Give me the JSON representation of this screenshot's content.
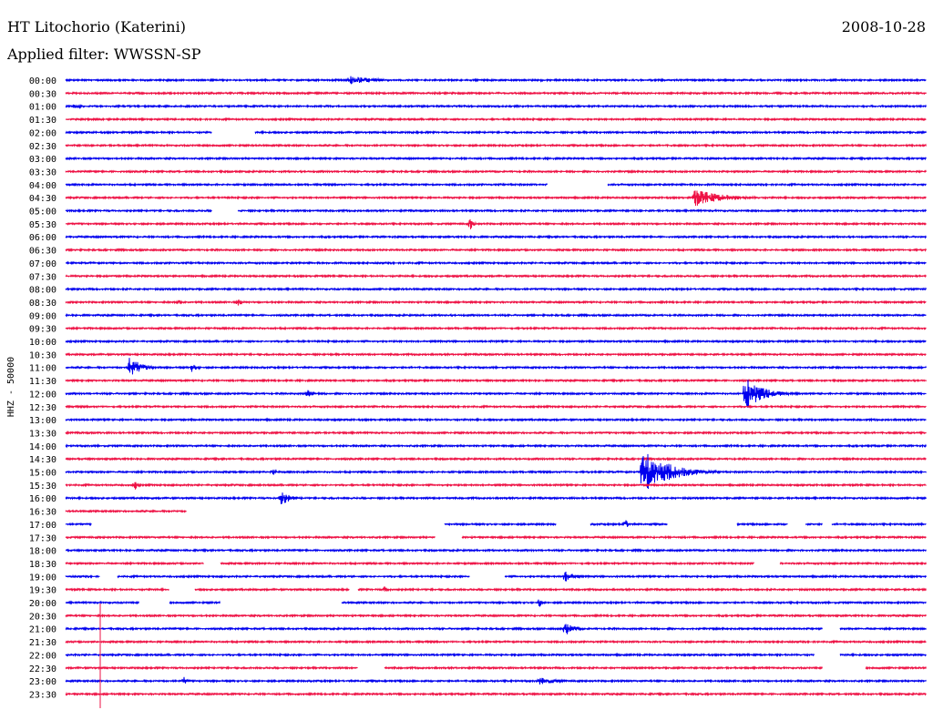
{
  "header": {
    "station": "HT Litochorio (Katerini)",
    "date": "2008-10-28",
    "filter": "Applied filter: WWSSN-SP"
  },
  "chart_data": {
    "type": "line",
    "title": "HT Litochorio (Katerini)",
    "subtitle": "Applied filter: WWSSN-SP",
    "ylabel": "HHZ - 50000",
    "series_colors": [
      "#0000ee",
      "#ee1144"
    ],
    "rows": [
      {
        "label": "00:00",
        "events": [
          [
            0.12,
            0.4,
            5
          ],
          [
            0.33,
            5,
            25
          ],
          [
            0.55,
            2,
            5
          ]
        ],
        "gaps": []
      },
      {
        "label": "00:30",
        "events": [],
        "gaps": []
      },
      {
        "label": "01:00",
        "events": [
          [
            0.01,
            4,
            6
          ]
        ],
        "gaps": []
      },
      {
        "label": "01:30",
        "events": [],
        "gaps": []
      },
      {
        "label": "02:00",
        "events": [],
        "gaps": [
          [
            0.17,
            0.22
          ]
        ]
      },
      {
        "label": "02:30",
        "events": [],
        "gaps": []
      },
      {
        "label": "03:00",
        "events": [],
        "gaps": []
      },
      {
        "label": "03:30",
        "events": [],
        "gaps": []
      },
      {
        "label": "04:00",
        "events": [],
        "gaps": [
          [
            0.56,
            0.63
          ]
        ]
      },
      {
        "label": "04:30",
        "events": [
          [
            0.73,
            10,
            28
          ]
        ],
        "gaps": []
      },
      {
        "label": "05:00",
        "events": [],
        "gaps": [
          [
            0.17,
            0.2
          ]
        ]
      },
      {
        "label": "05:30",
        "events": [
          [
            0.47,
            8,
            3
          ]
        ],
        "gaps": []
      },
      {
        "label": "06:00",
        "events": [],
        "gaps": []
      },
      {
        "label": "06:30",
        "events": [],
        "gaps": []
      },
      {
        "label": "07:00",
        "events": [],
        "gaps": []
      },
      {
        "label": "07:30",
        "events": [],
        "gaps": []
      },
      {
        "label": "08:00",
        "events": [],
        "gaps": []
      },
      {
        "label": "08:30",
        "events": [
          [
            0.13,
            4,
            4
          ],
          [
            0.2,
            4,
            5
          ]
        ],
        "gaps": []
      },
      {
        "label": "09:00",
        "events": [],
        "gaps": []
      },
      {
        "label": "09:30",
        "events": [],
        "gaps": []
      },
      {
        "label": "10:00",
        "events": [],
        "gaps": []
      },
      {
        "label": "10:30",
        "events": [],
        "gaps": []
      },
      {
        "label": "11:00",
        "events": [
          [
            0.074,
            12,
            12
          ],
          [
            0.146,
            5,
            6
          ]
        ],
        "gaps": []
      },
      {
        "label": "11:30",
        "events": [],
        "gaps": []
      },
      {
        "label": "12:00",
        "events": [
          [
            0.28,
            5,
            8
          ],
          [
            0.79,
            18,
            18
          ]
        ],
        "gaps": []
      },
      {
        "label": "12:30",
        "events": [],
        "gaps": []
      },
      {
        "label": "13:00",
        "events": [],
        "gaps": []
      },
      {
        "label": "13:30",
        "events": [],
        "gaps": []
      },
      {
        "label": "14:00",
        "events": [],
        "gaps": []
      },
      {
        "label": "14:30",
        "events": [],
        "gaps": []
      },
      {
        "label": "15:00",
        "events": [
          [
            0.24,
            4,
            5
          ],
          [
            0.67,
            26,
            25
          ]
        ],
        "gaps": []
      },
      {
        "label": "15:30",
        "events": [
          [
            0.08,
            6,
            3
          ]
        ],
        "gaps": []
      },
      {
        "label": "16:00",
        "events": [
          [
            0.25,
            8,
            10
          ]
        ],
        "gaps": []
      },
      {
        "label": "16:30",
        "events": [],
        "gaps": [
          [
            0.14,
            1.0
          ]
        ]
      },
      {
        "label": "17:00",
        "events": [
          [
            0.65,
            8,
            3
          ]
        ],
        "gaps": [
          [
            0.03,
            0.44
          ],
          [
            0.57,
            0.61
          ],
          [
            0.7,
            0.78
          ],
          [
            0.84,
            0.86
          ],
          [
            0.88,
            0.89
          ]
        ]
      },
      {
        "label": "17:30",
        "events": [],
        "gaps": [
          [
            0.43,
            0.46
          ]
        ]
      },
      {
        "label": "18:00",
        "events": [],
        "gaps": []
      },
      {
        "label": "18:30",
        "events": [],
        "gaps": [
          [
            0.16,
            0.18
          ],
          [
            0.8,
            0.83
          ]
        ]
      },
      {
        "label": "19:00",
        "events": [
          [
            0.58,
            8,
            8
          ]
        ],
        "gaps": [
          [
            0.04,
            0.06
          ],
          [
            0.47,
            0.51
          ]
        ]
      },
      {
        "label": "19:30",
        "events": [
          [
            0.37,
            5,
            4
          ]
        ],
        "gaps": [
          [
            0.12,
            0.15
          ],
          [
            0.33,
            0.34
          ]
        ]
      },
      {
        "label": "20:00",
        "events": [
          [
            0.55,
            8,
            2
          ]
        ],
        "gaps": [
          [
            0.085,
            0.12
          ],
          [
            0.18,
            0.32
          ]
        ]
      },
      {
        "label": "20:30",
        "events": [],
        "gaps": []
      },
      {
        "label": "21:00",
        "events": [
          [
            0.58,
            9,
            8
          ]
        ],
        "gaps": [
          [
            0.88,
            0.9
          ]
        ]
      },
      {
        "label": "21:30",
        "events": [],
        "gaps": []
      },
      {
        "label": "22:00",
        "events": [],
        "gaps": [
          [
            0.87,
            0.9
          ]
        ]
      },
      {
        "label": "22:30",
        "events": [],
        "gaps": [
          [
            0.34,
            0.37
          ],
          [
            0.88,
            0.93
          ]
        ]
      },
      {
        "label": "23:00",
        "events": [
          [
            0.137,
            5,
            4
          ],
          [
            0.55,
            4,
            20
          ]
        ],
        "gaps": []
      },
      {
        "label": "23:30",
        "events": [],
        "gaps": []
      }
    ]
  }
}
